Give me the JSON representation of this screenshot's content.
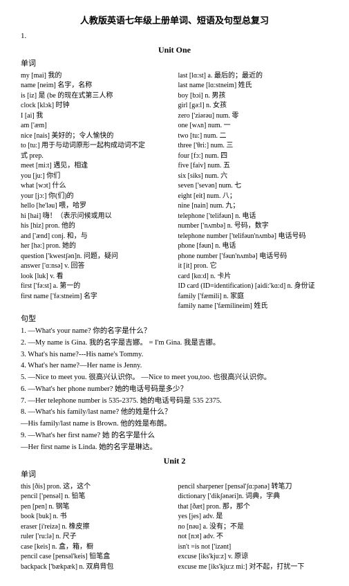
{
  "title": "人教版英语七年级上册单词、短语及句型总复习",
  "section1_num": "1.",
  "unit1_title": "Unit One",
  "label_word": "单词",
  "label_sentence": "句型",
  "unit2_title": "Unit  2",
  "u1_left": [
    "my      [mai]    我的",
    "name  [neim]      名字，名称",
    "is     [iz]     是 (be 的现在式第三人称",
    "clock   [klɔk]   时钟",
    "I       [ai]    我",
    "am    ['æm]",
    "nice   [nais]    美好的；令人愉快的",
    "to     [tu:]      用于与动词原形一起构成动词不定",
    "式 prep.",
    "meet   [mi:t]   遇见，相逢",
    "you     [ju:]    你们",
    "what    [wɔt]   什么",
    "your    [jɔ:]  你(们)的",
    "hello   [he'ləu]   喂，哈罗",
    "hi     [hai]    嗨！（表示问候或用以",
    "his    [hiz]     pron. 他的",
    "and   ['ænd]    conj.   和，与",
    "her    [hə:]     pron.  她的",
    "question   ['kwestʃən]n.      问题，疑问",
    "answer     ['ɑ:nsə]     v. 回答",
    "look      [luk]    v.   看",
    "first   ['fə:st]      a.  第一的",
    "first name    ['fə:stneim]       名字"
  ],
  "u1_right": [
    "last        [lɑ:st]    a. 最后的；最近的",
    "last name     [lɑ:stneim]    姓氏",
    "boy    [bɔi]       n. 男孩",
    "girl     [gə:l]       n. 女孩",
    "zero     ['ziərəu]    num.  零",
    "one     [wʌn]     num.  一",
    "two     [tu:]      num.  二",
    "three     ['θri:]    num.  三",
    "four    [fɔ:]      num.  四",
    "five    [faiv]      num.  五",
    "six    [siks]     num.  六",
    "seven     ['sevən]  num. 七",
    "eight    [eit]     num. 八；",
    "nine    [nain]     num. 九；",
    "telephone   ['telifəun]     n. 电话",
    "number    ['nʌmbə]       n. 号码，数字",
    "telephone number  ['telifəun'nʌmbə]     电话号码",
    "phone   [fəun]      n. 电话",
    "phone number    ['fəun'nʌmbə] 电话号码",
    "it     [it]       pron.  它",
    "card   [kɑ:d]     n. 卡片",
    "ID card  (ID=identification)  [aidi:'kɑ:d]      n. 身份证",
    "family     ['fæmili]      n. 家庭",
    "family name    ['fæmilineim]        姓氏"
  ],
  "sentences": [
    "1.  —What's your name?  你的名字是什么？",
    "2.  —My name is Gina.  我的名字是吉娜。 = I'm Gina. 我是吉娜。",
    "3.  What's his name?---His name's Tommy.",
    "4.  What's her name?—Her name is Jenny.",
    "5.  —Nice to meet you. 很高兴认识你。   —Nice to meet you,too. 也很高兴认识你。",
    "6.  —What's her phone number? 她的电话号码是多少？",
    "7.  —Her telephone number is 535-2375.  她的电话号码是 535 2375.",
    "8.  —What's his family/last name? 他的姓是什么？",
    "    —His family/last name is Brown.  他的姓是布朗。",
    "9.  —What's her first name? 她 的名字是什么",
    "    —Her first name is Linda.  她的名字是琳达。"
  ],
  "u2_left": [
    "this   [ðis]     pron. 这，这个",
    "pencil     ['pensəl]    n. 铅笔",
    "pen    [pen]     n. 钢笔",
    "book   [buk]      n. 书",
    "eraser    [i'reizə]     n. 橡皮擦",
    "ruler    ['ru:lə]     n. 尺子",
    "case   [keis]     n. 盒，箱，橱",
    "pencil case    [pensəl'keis]       铅笔盒",
    "backpack    ['bækpæk]     n. 双肩背包"
  ],
  "u2_right": [
    "pencil sharpener [pensəl'ʃɑ:pənə]    转笔刀",
    "dictionary        ['dikʃənəri]n. 词典，字典",
    "that    [ðæt]       pron. 那，那个",
    "yes   [jes]      adv. 是",
    "no    [nəu]      a. 没有；不是",
    "not   [nɔt]      adv. 不",
    "isn't =is not  ['izənt]",
    "excuse   [iks'kju:z]        v. 原谅",
    "excuse me [iks'kju:z mi:]   对不起，打扰一下"
  ]
}
